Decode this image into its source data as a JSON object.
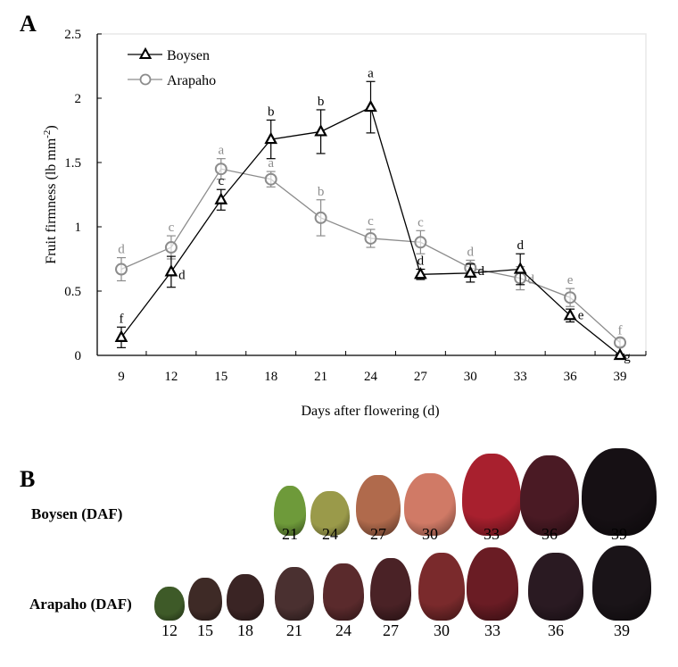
{
  "panels": {
    "a_label": "A",
    "b_label": "B"
  },
  "chart_data": {
    "type": "line",
    "title": "",
    "xlabel": "Days after flowering  (d)",
    "ylabel": "Fruit firmness (lb mm",
    "ylabel_sup": "-2",
    "ylabel_end": ")",
    "x": [
      9,
      12,
      15,
      18,
      21,
      24,
      27,
      30,
      33,
      36,
      39
    ],
    "xticks": [
      "9",
      "12",
      "15",
      "18",
      "21",
      "24",
      "27",
      "30",
      "33",
      "36",
      "39"
    ],
    "yticks": [
      "0",
      "0.5",
      "1",
      "1.5",
      "2",
      "2.5"
    ],
    "ytick_values": [
      0,
      0.5,
      1,
      1.5,
      2,
      2.5
    ],
    "ylim": [
      0,
      2.5
    ],
    "xlim": [
      9,
      39
    ],
    "grid": false,
    "legend_position": "top-left",
    "series": [
      {
        "name": "Boysen",
        "marker": "triangle",
        "color": "#000000",
        "values": [
          0.14,
          0.65,
          1.21,
          1.68,
          1.74,
          1.93,
          0.63,
          0.64,
          0.67,
          0.31,
          0.0
        ],
        "errors": [
          0.08,
          0.12,
          0.08,
          0.15,
          0.17,
          0.2,
          0.04,
          0.07,
          0.12,
          0.05,
          0.01
        ],
        "letters": [
          "f",
          "d",
          "c",
          "b",
          "b",
          "a",
          "d",
          "d",
          "d",
          "e",
          "g"
        ]
      },
      {
        "name": "Arapaho",
        "marker": "circle",
        "color": "#8c8c8c",
        "values": [
          0.67,
          0.84,
          1.45,
          1.37,
          1.07,
          0.91,
          0.88,
          0.68,
          0.6,
          0.45,
          0.1
        ],
        "errors": [
          0.09,
          0.09,
          0.08,
          0.06,
          0.14,
          0.07,
          0.09,
          0.06,
          0.09,
          0.07,
          0.03
        ],
        "letters": [
          "d",
          "c",
          "a",
          "a",
          "b",
          "c",
          "c",
          "d",
          "d",
          "e",
          "f"
        ]
      }
    ]
  },
  "photos": {
    "boysen_label": "Boysen (DAF)",
    "arapaho_label": "Arapaho (DAF)",
    "boysen": [
      {
        "day": "21",
        "color": "#6e9a3a"
      },
      {
        "day": "24",
        "color": "#9a9a4a"
      },
      {
        "day": "27",
        "color": "#b06a4c"
      },
      {
        "day": "30",
        "color": "#d07a66"
      },
      {
        "day": "33",
        "color": "#a8202e"
      },
      {
        "day": "36",
        "color": "#4a1a24"
      },
      {
        "day": "39",
        "color": "#161014"
      }
    ],
    "arapaho": [
      {
        "day": "12",
        "color": "#3e5a28"
      },
      {
        "day": "15",
        "color": "#3e2a26"
      },
      {
        "day": "18",
        "color": "#3a2424"
      },
      {
        "day": "21",
        "color": "#4a3030"
      },
      {
        "day": "24",
        "color": "#5a2a2c"
      },
      {
        "day": "27",
        "color": "#4a2226"
      },
      {
        "day": "30",
        "color": "#7a2a2c"
      },
      {
        "day": "33",
        "color": "#6a1c24"
      },
      {
        "day": "36",
        "color": "#2a1a22"
      },
      {
        "day": "39",
        "color": "#1a1418"
      }
    ]
  }
}
